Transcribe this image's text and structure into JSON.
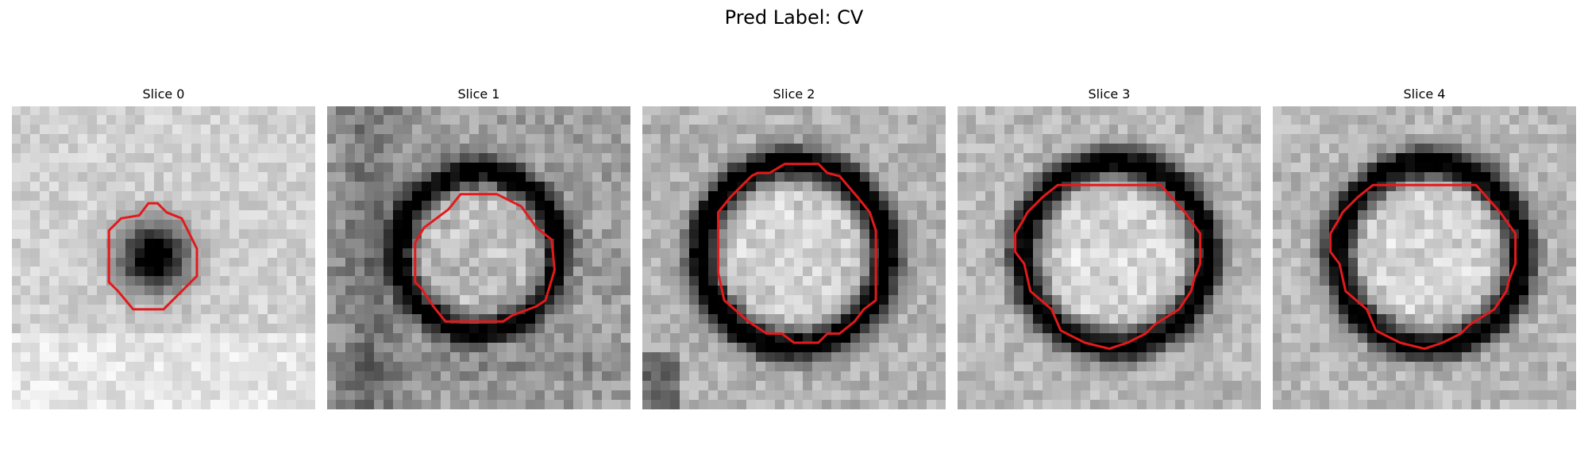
{
  "figure": {
    "title": "Pred Label: CV",
    "contour_color": "#e31a1c",
    "colormap": "gray",
    "panels": [
      {
        "title": "Slice 0",
        "nodule": {
          "center": [
            0.47,
            0.5
          ],
          "radius": 0.12,
          "darkness": 0.95,
          "type": "solid"
        },
        "background_noise": 0.16,
        "background_base": 0.82,
        "contour": [
          [
            0.42,
            0.36
          ],
          [
            0.45,
            0.32
          ],
          [
            0.48,
            0.32
          ],
          [
            0.51,
            0.35
          ],
          [
            0.56,
            0.37
          ],
          [
            0.58,
            0.41
          ],
          [
            0.61,
            0.47
          ],
          [
            0.61,
            0.56
          ],
          [
            0.55,
            0.62
          ],
          [
            0.5,
            0.67
          ],
          [
            0.4,
            0.67
          ],
          [
            0.35,
            0.61
          ],
          [
            0.32,
            0.58
          ],
          [
            0.32,
            0.41
          ],
          [
            0.36,
            0.37
          ]
        ]
      },
      {
        "title": "Slice 1",
        "nodule": {
          "center": [
            0.5,
            0.48
          ],
          "radius": 0.26,
          "darkness": 0.78,
          "type": "ring"
        },
        "background_noise": 0.24,
        "background_base": 0.62,
        "contour": [
          [
            0.4,
            0.34
          ],
          [
            0.44,
            0.29
          ],
          [
            0.56,
            0.29
          ],
          [
            0.64,
            0.33
          ],
          [
            0.69,
            0.4
          ],
          [
            0.74,
            0.44
          ],
          [
            0.75,
            0.54
          ],
          [
            0.72,
            0.64
          ],
          [
            0.69,
            0.66
          ],
          [
            0.61,
            0.69
          ],
          [
            0.58,
            0.71
          ],
          [
            0.39,
            0.71
          ],
          [
            0.35,
            0.66
          ],
          [
            0.31,
            0.6
          ],
          [
            0.29,
            0.58
          ],
          [
            0.29,
            0.45
          ],
          [
            0.32,
            0.4
          ]
        ]
      },
      {
        "title": "Slice 2",
        "nodule": {
          "center": [
            0.5,
            0.49
          ],
          "radius": 0.3,
          "darkness": 0.88,
          "type": "ring"
        },
        "background_noise": 0.2,
        "background_base": 0.7,
        "contour": [
          [
            0.36,
            0.23
          ],
          [
            0.38,
            0.22
          ],
          [
            0.42,
            0.22
          ],
          [
            0.47,
            0.19
          ],
          [
            0.58,
            0.19
          ],
          [
            0.61,
            0.22
          ],
          [
            0.65,
            0.23
          ],
          [
            0.71,
            0.3
          ],
          [
            0.75,
            0.35
          ],
          [
            0.77,
            0.41
          ],
          [
            0.77,
            0.64
          ],
          [
            0.73,
            0.67
          ],
          [
            0.7,
            0.71
          ],
          [
            0.65,
            0.75
          ],
          [
            0.61,
            0.75
          ],
          [
            0.58,
            0.78
          ],
          [
            0.5,
            0.78
          ],
          [
            0.46,
            0.75
          ],
          [
            0.41,
            0.75
          ],
          [
            0.35,
            0.71
          ],
          [
            0.27,
            0.64
          ],
          [
            0.25,
            0.55
          ],
          [
            0.25,
            0.35
          ],
          [
            0.29,
            0.3
          ]
        ]
      },
      {
        "title": "Slice 3",
        "nodule": {
          "center": [
            0.52,
            0.49
          ],
          "radius": 0.3,
          "darkness": 0.84,
          "type": "ring"
        },
        "background_noise": 0.2,
        "background_base": 0.72,
        "contour": [
          [
            0.33,
            0.26
          ],
          [
            0.67,
            0.26
          ],
          [
            0.75,
            0.35
          ],
          [
            0.8,
            0.42
          ],
          [
            0.8,
            0.52
          ],
          [
            0.78,
            0.57
          ],
          [
            0.77,
            0.61
          ],
          [
            0.73,
            0.67
          ],
          [
            0.65,
            0.72
          ],
          [
            0.62,
            0.75
          ],
          [
            0.56,
            0.78
          ],
          [
            0.5,
            0.8
          ],
          [
            0.42,
            0.78
          ],
          [
            0.34,
            0.74
          ],
          [
            0.31,
            0.67
          ],
          [
            0.24,
            0.61
          ],
          [
            0.22,
            0.52
          ],
          [
            0.19,
            0.48
          ],
          [
            0.19,
            0.42
          ],
          [
            0.22,
            0.37
          ],
          [
            0.23,
            0.35
          ],
          [
            0.28,
            0.3
          ]
        ]
      },
      {
        "title": "Slice 4",
        "nodule": {
          "center": [
            0.52,
            0.49
          ],
          "radius": 0.3,
          "darkness": 0.86,
          "type": "ring"
        },
        "background_noise": 0.2,
        "background_base": 0.72,
        "contour": [
          [
            0.33,
            0.26
          ],
          [
            0.67,
            0.26
          ],
          [
            0.75,
            0.35
          ],
          [
            0.8,
            0.42
          ],
          [
            0.8,
            0.52
          ],
          [
            0.78,
            0.57
          ],
          [
            0.77,
            0.61
          ],
          [
            0.73,
            0.67
          ],
          [
            0.65,
            0.72
          ],
          [
            0.62,
            0.75
          ],
          [
            0.56,
            0.78
          ],
          [
            0.5,
            0.8
          ],
          [
            0.42,
            0.78
          ],
          [
            0.34,
            0.74
          ],
          [
            0.31,
            0.67
          ],
          [
            0.24,
            0.61
          ],
          [
            0.22,
            0.52
          ],
          [
            0.19,
            0.48
          ],
          [
            0.19,
            0.42
          ],
          [
            0.22,
            0.37
          ],
          [
            0.23,
            0.35
          ],
          [
            0.28,
            0.3
          ]
        ]
      }
    ]
  }
}
